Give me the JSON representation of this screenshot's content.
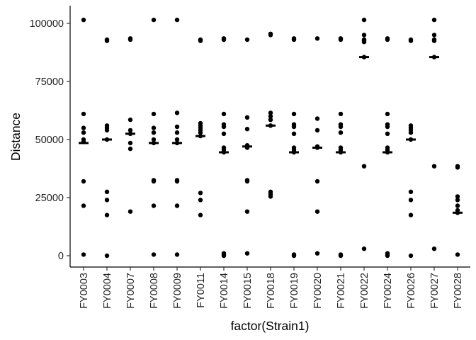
{
  "chart_data": {
    "type": "scatter",
    "xlabel": "factor(Strain1)",
    "ylabel": "Distance",
    "ylim": [
      -5000,
      108000
    ],
    "yticks": [
      0,
      25000,
      50000,
      75000,
      100000
    ],
    "ytick_labels": [
      "0",
      "25000",
      "50000",
      "75000",
      "100000"
    ],
    "grid": false,
    "legend": "none",
    "categories": [
      "FY0003",
      "FY0004",
      "FY0007",
      "FY0008",
      "FY0009",
      "FY0011",
      "FY0014",
      "FY0015",
      "FY0018",
      "FY0019",
      "FY0020",
      "FY0021",
      "FY0022",
      "FY0024",
      "FY0026",
      "FY0027",
      "FY0028"
    ],
    "points": [
      [
        101500,
        61000,
        55000,
        53000,
        50000,
        49000,
        32000,
        21500,
        500
      ],
      [
        93000,
        92500,
        56000,
        55000,
        54000,
        50000,
        27500,
        24000,
        17500,
        0
      ],
      [
        93000,
        93500,
        58500,
        54000,
        52500,
        48500,
        46000,
        19000
      ],
      [
        101500,
        61000,
        55000,
        53000,
        50000,
        48500,
        32500,
        32000,
        21500,
        500
      ],
      [
        101500,
        61500,
        55500,
        53000,
        50000,
        48500,
        32500,
        32000,
        21500,
        500
      ],
      [
        92500,
        93000,
        57000,
        56000,
        55000,
        54000,
        53000,
        51500,
        27000,
        24000,
        17500
      ],
      [
        93500,
        93000,
        61000,
        56500,
        55500,
        52500,
        46500,
        45500,
        44500,
        1000,
        500,
        0
      ],
      [
        93000,
        59500,
        54500,
        47500,
        46500,
        32500,
        32000,
        19000,
        1000
      ],
      [
        95000,
        95500,
        61500,
        60000,
        58500,
        56000,
        27500,
        26500,
        25500
      ],
      [
        93500,
        93000,
        61000,
        56500,
        55500,
        52500,
        46500,
        45500,
        44500,
        500,
        0
      ],
      [
        93500,
        59000,
        54000,
        47000,
        46500,
        32000,
        19000,
        1000
      ],
      [
        93500,
        93000,
        61000,
        56500,
        55500,
        53000,
        46500,
        45500,
        44500,
        500,
        0
      ],
      [
        101500,
        95000,
        93000,
        92500,
        92000,
        85500,
        38500,
        3000
      ],
      [
        93500,
        93000,
        61000,
        56500,
        55500,
        52500,
        46500,
        45500,
        44500,
        1000,
        500,
        0
      ],
      [
        93000,
        92500,
        56000,
        55000,
        54000,
        53000,
        50000,
        27500,
        24000,
        17500,
        0
      ],
      [
        101500,
        95000,
        93000,
        92500,
        85500,
        38500,
        3000
      ],
      [
        38500,
        38000,
        25500,
        24000,
        21500,
        19500,
        18500,
        500
      ]
    ],
    "medians": [
      48500,
      50000,
      52500,
      48500,
      48500,
      51500,
      44500,
      47000,
      56000,
      44500,
      46500,
      44500,
      85500,
      44500,
      50000,
      85500,
      18500
    ]
  }
}
